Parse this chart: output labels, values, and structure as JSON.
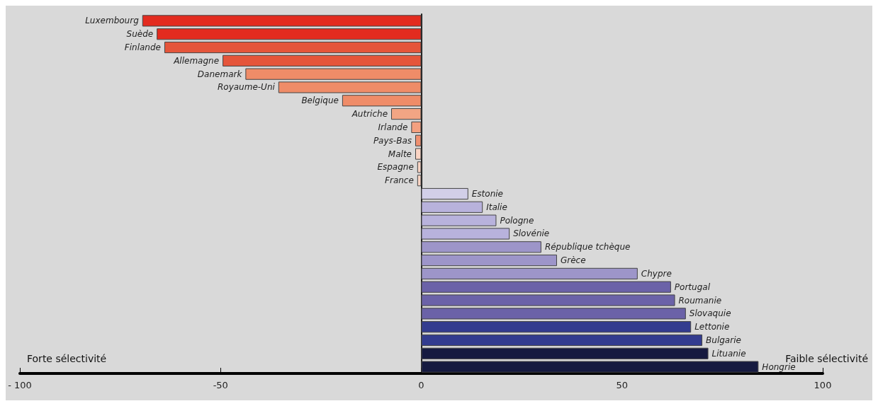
{
  "chart_data": {
    "type": "bar",
    "orientation": "horizontal",
    "categories": [
      "Luxembourg",
      "Suède",
      "Finlande",
      "Allemagne",
      "Danemark",
      "Royaume-Uni",
      "Belgique",
      "Autriche",
      "Irlande",
      "Pays-Bas",
      "Malte",
      "Espagne",
      "France",
      "Estonie",
      "Italie",
      "Pologne",
      "Slovénie",
      "République tchèque",
      "Grèce",
      "Chypre",
      "Portugal",
      "Roumanie",
      "Slovaquie",
      "Lettonie",
      "Bulgarie",
      "Lituanie",
      "Hongrie"
    ],
    "values": [
      -69.5,
      -65.9,
      -64,
      -49.5,
      -43.8,
      -35.6,
      -19.7,
      -7.5,
      -2.5,
      -1.5,
      -1.5,
      -1,
      -1,
      11.7,
      15.3,
      18.7,
      22,
      29.9,
      33.8,
      53.9,
      62.2,
      63.2,
      65.9,
      67.2,
      70,
      71.5,
      84
    ],
    "colors": [
      "#e32b1f",
      "#e32b1f",
      "#e5553a",
      "#e5553a",
      "#ef8c68",
      "#ef8c68",
      "#ef8c68",
      "#f2a584",
      "#f4a080",
      "#ef9070",
      "#fad4c4",
      "#fad4c4",
      "#fad4c4",
      "#d2cfe8",
      "#b8b2dc",
      "#b8b2dc",
      "#b8b2dc",
      "#9d95c9",
      "#9d95c9",
      "#9d95c9",
      "#6b62a8",
      "#6b62a8",
      "#6b62a8",
      "#333c8f",
      "#333c8f",
      "#161a40",
      "#161a40"
    ],
    "xlim": [
      -100,
      100
    ],
    "xticks": [
      {
        "value": -100,
        "label": "- 100"
      },
      -50,
      0,
      50,
      100
    ],
    "annotations": [
      "Forte sélectivité",
      "Faible sélectivité"
    ],
    "grid": false
  }
}
